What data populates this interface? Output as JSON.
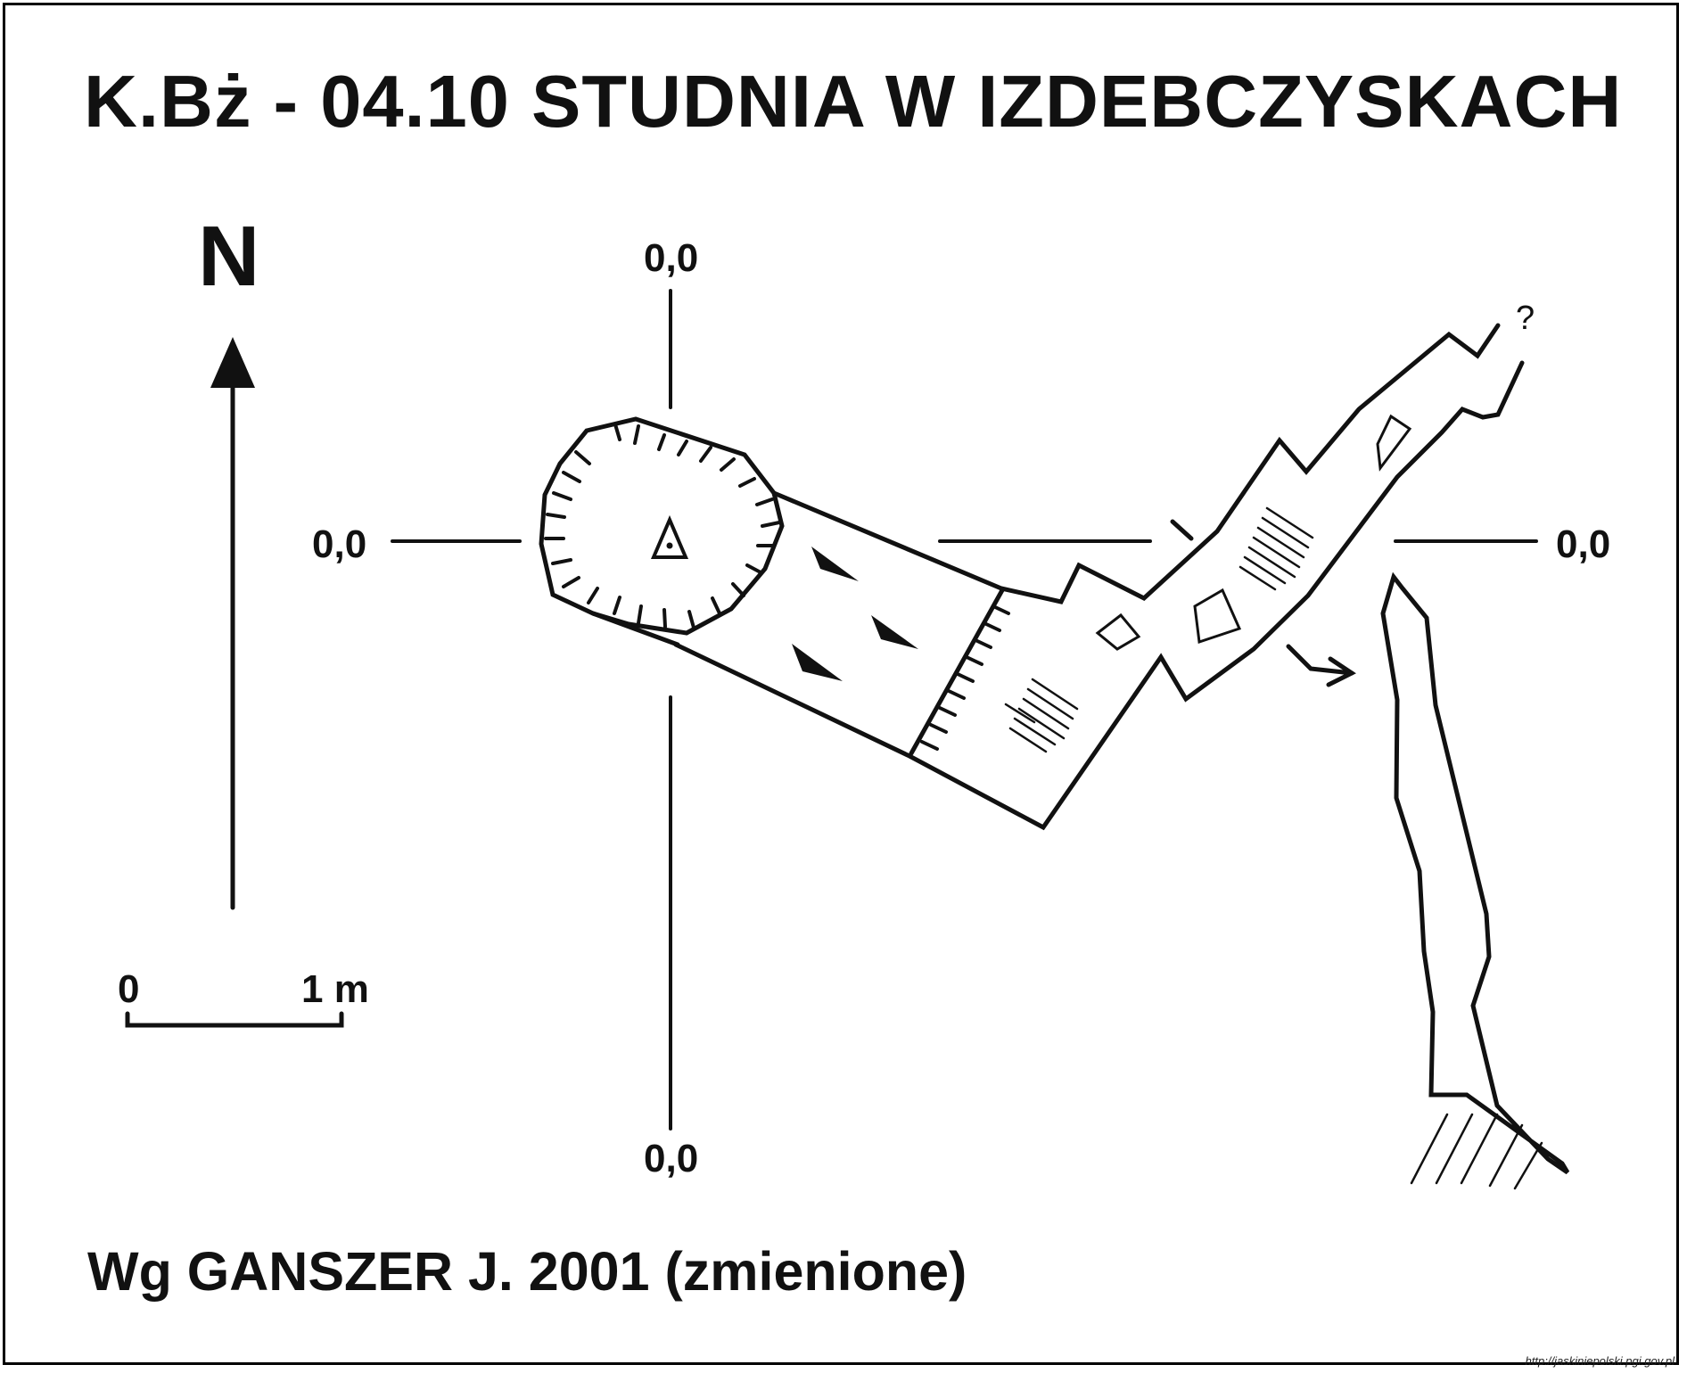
{
  "title": "K.Bż - 04.10  STUDNIA W IZDEBCZYSKACH",
  "north_label": "N",
  "reference_coords": {
    "top": "0,0",
    "left": "0,0",
    "right": "0,0",
    "bottom": "0,0"
  },
  "scale_bar": {
    "start_label": "0",
    "end_label": "1 m"
  },
  "author_credit": "Wg GANSZER J. 2001 (zmienione)",
  "source_url": "http://jaskiniepolski.pgi.gov.pl",
  "unexplored_marker": "?",
  "colors": {
    "ink": "#111111",
    "background": "#ffffff"
  }
}
